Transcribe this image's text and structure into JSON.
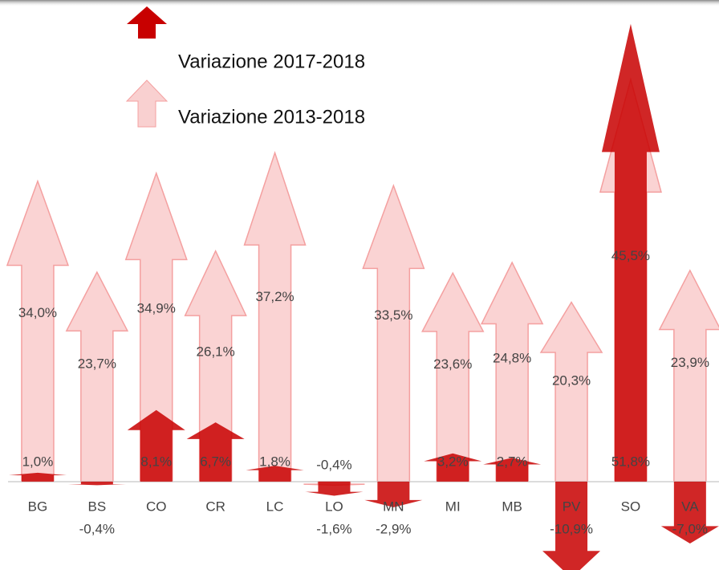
{
  "chart_data": {
    "type": "arrow",
    "categories": [
      "BG",
      "BS",
      "CO",
      "CR",
      "LC",
      "LO",
      "MN",
      "MI",
      "MB",
      "PV",
      "SO",
      "VA"
    ],
    "series": [
      {
        "name": "Variazione 2013-2018",
        "color": "#f8c4c4",
        "values": [
          34.0,
          23.7,
          34.9,
          26.1,
          37.2,
          -0.4,
          33.5,
          23.6,
          24.8,
          20.3,
          45.5,
          23.9
        ],
        "value_labels": [
          "34,0%",
          "23,7%",
          "34,9%",
          "26,1%",
          "37,2%",
          "-0,4%",
          "33,5%",
          "23,6%",
          "24,8%",
          "20,3%",
          "45,5%",
          "23,9%"
        ]
      },
      {
        "name": "Variazione 2017-2018",
        "color": "#c80000",
        "values": [
          1.0,
          -0.4,
          8.1,
          6.7,
          1.8,
          -1.6,
          -2.9,
          3.2,
          2.7,
          -10.9,
          51.8,
          -7.0
        ],
        "value_labels": [
          "1,0%",
          "-0,4%",
          "8,1%",
          "6,7%",
          "1,8%",
          "-1,6%",
          "-2,9%",
          "3,2%",
          "2,7%",
          "-10,9%",
          "51,8%",
          "-7,0%"
        ]
      }
    ],
    "ylim": [
      -10,
      54.5
    ]
  }
}
